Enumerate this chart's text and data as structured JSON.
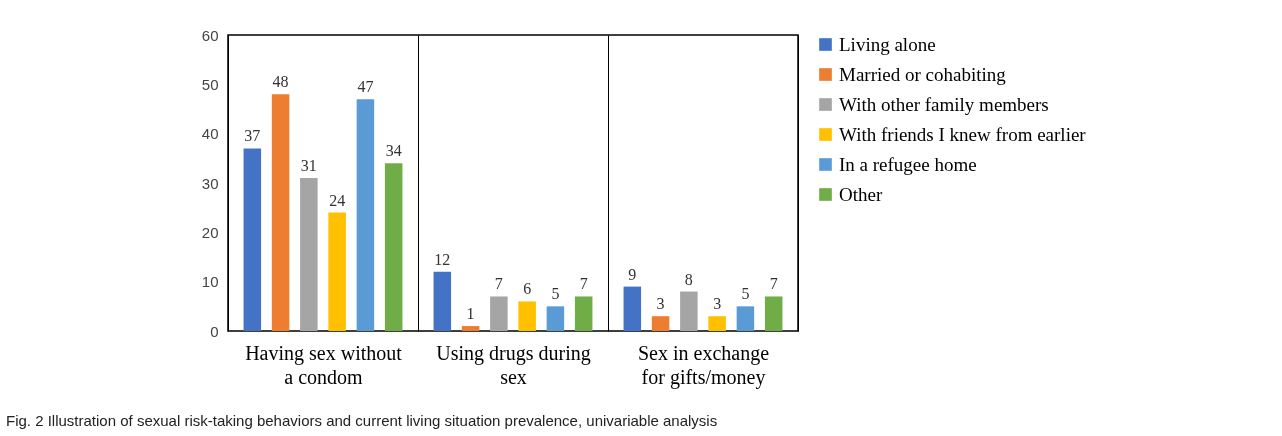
{
  "chart_data": {
    "type": "bar",
    "categories": [
      "Having sex without a condom",
      "Using drugs during sex",
      "Sex in exchange for gifts/money"
    ],
    "series": [
      {
        "name": "Living alone",
        "color": "#4472c4",
        "values": [
          37,
          12,
          9
        ]
      },
      {
        "name": "Married or cohabiting",
        "color": "#ed7d31",
        "values": [
          48,
          1,
          3
        ]
      },
      {
        "name": "With other family members",
        "color": "#a5a5a5",
        "values": [
          31,
          7,
          8
        ]
      },
      {
        "name": "With friends I knew from earlier",
        "color": "#ffc000",
        "values": [
          24,
          6,
          3
        ]
      },
      {
        "name": "In a refugee home",
        "color": "#5b9bd5",
        "values": [
          47,
          5,
          5
        ]
      },
      {
        "name": "Other",
        "color": "#70ad47",
        "values": [
          34,
          7,
          7
        ]
      }
    ],
    "ylim": [
      0,
      60
    ],
    "yticks": [
      0,
      10,
      20,
      30,
      40,
      50,
      60
    ],
    "grid": "x",
    "legend": "right",
    "data_labels": true,
    "annotations": [
      "Fig. 2 Illustration of sexual risk-taking behaviors and current living situation prevalence, univariable analysis"
    ]
  }
}
